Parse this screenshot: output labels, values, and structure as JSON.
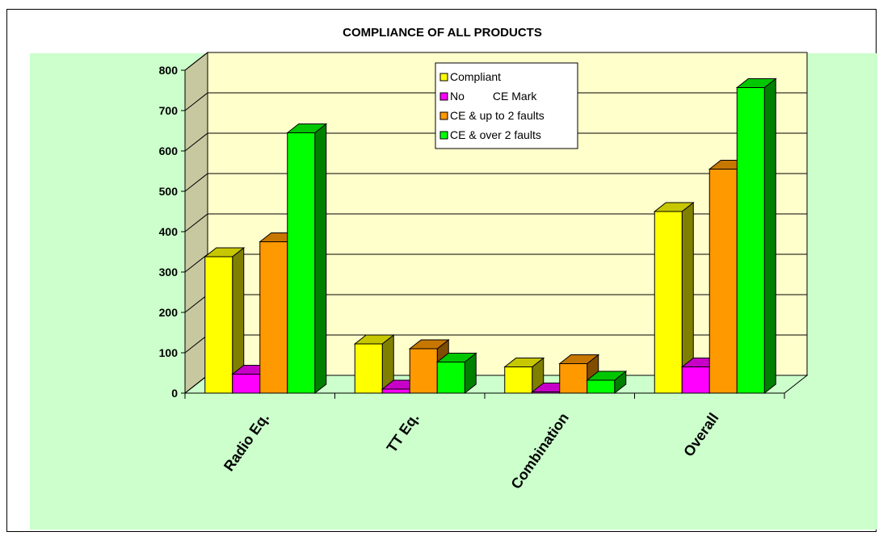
{
  "chart_data": {
    "type": "bar",
    "title": "COMPLIANCE OF ALL PRODUCTS",
    "categories": [
      "Radio Eq.",
      "TT Eq.",
      "Combination",
      "Overall"
    ],
    "series": [
      {
        "name": "Compliant",
        "values": [
          338,
          122,
          65,
          450
        ],
        "color": "#ffff00"
      },
      {
        "name": "No         CE Mark",
        "values": [
          47,
          10,
          3,
          65
        ],
        "color": "#ff00ff"
      },
      {
        "name": "CE & up to 2 faults",
        "values": [
          375,
          110,
          73,
          555
        ],
        "color": "#ff9900"
      },
      {
        "name": "CE & over 2 faults",
        "values": [
          645,
          77,
          32,
          757
        ],
        "color": "#00ff00"
      }
    ],
    "ylim": [
      0,
      800
    ],
    "yticks": [
      0,
      100,
      200,
      300,
      400,
      500,
      600,
      700,
      800
    ],
    "grid": true,
    "legend": "top-center",
    "colors": {
      "wall": "#ffffcc",
      "plot_area": "#ccffcc",
      "floor": "#ccffcc"
    }
  }
}
